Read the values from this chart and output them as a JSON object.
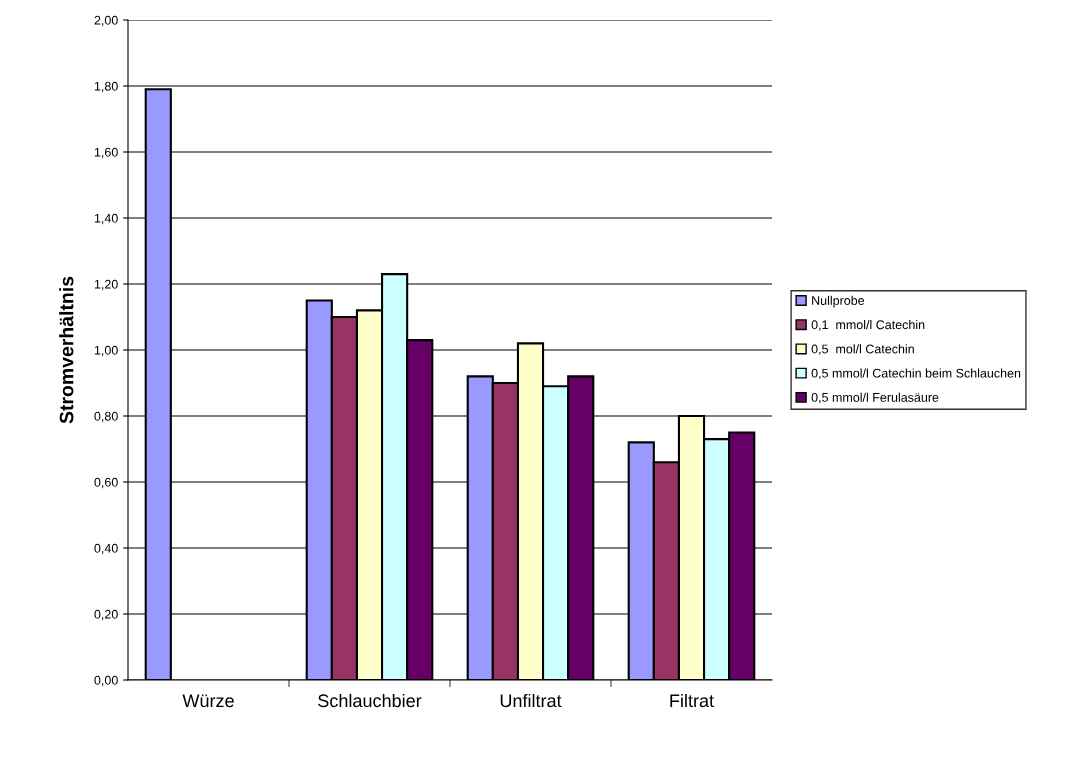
{
  "chart_data": {
    "type": "bar",
    "ylabel": "Stromverhältnis",
    "categories": [
      "Würze",
      "Schlauchbier",
      "Unfiltrat",
      "Filtrat"
    ],
    "series": [
      {
        "name": "Nullprobe",
        "color": "#9999ff",
        "values": [
          1.79,
          1.15,
          0.92,
          0.72
        ]
      },
      {
        "name": "0,1  mmol/l Catechin",
        "color": "#993366",
        "values": [
          null,
          1.1,
          0.9,
          0.66
        ]
      },
      {
        "name": "0,5  mol/l Catechin",
        "color": "#ffffcc",
        "values": [
          null,
          1.12,
          1.02,
          0.8
        ]
      },
      {
        "name": "0,5 mmol/l Catechin beim Schlauchen",
        "color": "#ccffff",
        "values": [
          null,
          1.23,
          0.89,
          0.73
        ]
      },
      {
        "name": "0,5 mmol/l Ferulasäure",
        "color": "#660066",
        "values": [
          null,
          1.03,
          0.92,
          0.75
        ]
      }
    ],
    "ylim": [
      0,
      2
    ],
    "yticks": [
      {
        "value": 0,
        "label": "0,00"
      },
      {
        "value": 0.2,
        "label": "0,20"
      },
      {
        "value": 0.4,
        "label": "0,40"
      },
      {
        "value": 0.6,
        "label": "0,60"
      },
      {
        "value": 0.8,
        "label": "0,80"
      },
      {
        "value": 1.0,
        "label": "1,00"
      },
      {
        "value": 1.2,
        "label": "1,20"
      },
      {
        "value": 1.4,
        "label": "1,40"
      },
      {
        "value": 1.6,
        "label": "1,60"
      },
      {
        "value": 1.8,
        "label": "1,80"
      },
      {
        "value": 2.0,
        "label": "2,00"
      }
    ],
    "grid": "y",
    "legend": "right"
  }
}
